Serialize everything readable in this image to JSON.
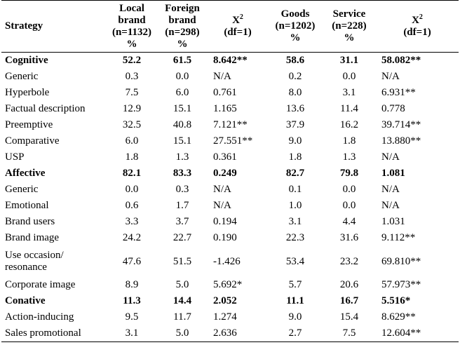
{
  "header": {
    "strategy": "Strategy",
    "local_line1": "Local",
    "local_line2": "brand",
    "local_line3": "(n=1132)",
    "local_line4": "%",
    "foreign_line1": "Foreign",
    "foreign_line2": "brand",
    "foreign_line3": "(n=298)",
    "foreign_line4": "%",
    "chi1_base": "X",
    "chi1_sup": "2",
    "chi1_df": "(df=1)",
    "goods_line1": "Goods",
    "goods_line2": "(n=1202)",
    "goods_line3": "%",
    "service_line1": "Service",
    "service_line2": "(n=228)",
    "service_line3": "%",
    "chi2_base": "X",
    "chi2_sup": "2",
    "chi2_df": "(df=1)"
  },
  "rows": [
    {
      "name": "Cognitive",
      "local": "52.2",
      "foreign": "61.5",
      "chi1": "8.642**",
      "goods": "58.6",
      "service": "31.1",
      "chi2": "58.082**"
    },
    {
      "name": "Generic",
      "local": "0.3",
      "foreign": "0.0",
      "chi1": "N/A",
      "goods": "0.2",
      "service": "0.0",
      "chi2": "N/A"
    },
    {
      "name": "Hyperbole",
      "local": "7.5",
      "foreign": "6.0",
      "chi1": "0.761",
      "goods": "8.0",
      "service": "3.1",
      "chi2": "6.931**"
    },
    {
      "name": "Factual description",
      "local": "12.9",
      "foreign": "15.1",
      "chi1": "1.165",
      "goods": "13.6",
      "service": "11.4",
      "chi2": "0.778"
    },
    {
      "name": "Preemptive",
      "local": "32.5",
      "foreign": "40.8",
      "chi1": "7.121**",
      "goods": "37.9",
      "service": "16.2",
      "chi2": "39.714**"
    },
    {
      "name": "Comparative",
      "local": "6.0",
      "foreign": "15.1",
      "chi1": "27.551**",
      "goods": "9.0",
      "service": "1.8",
      "chi2": "13.880**"
    },
    {
      "name": "USP",
      "local": "1.8",
      "foreign": "1.3",
      "chi1": "0.361",
      "goods": "1.8",
      "service": "1.3",
      "chi2": "N/A"
    },
    {
      "name": "Affective",
      "local": "82.1",
      "foreign": "83.3",
      "chi1": "0.249",
      "goods": "82.7",
      "service": "79.8",
      "chi2": "1.081"
    },
    {
      "name": "Generic",
      "local": "0.0",
      "foreign": "0.3",
      "chi1": "N/A",
      "goods": "0.1",
      "service": "0.0",
      "chi2": "N/A"
    },
    {
      "name": "Emotional",
      "local": "0.6",
      "foreign": "1.7",
      "chi1": "N/A",
      "goods": "1.0",
      "service": "0.0",
      "chi2": "N/A"
    },
    {
      "name": "Brand users",
      "local": "3.3",
      "foreign": "3.7",
      "chi1": "0.194",
      "goods": "3.1",
      "service": "4.4",
      "chi2": "1.031"
    },
    {
      "name": "Brand image",
      "local": "24.2",
      "foreign": "22.7",
      "chi1": "0.190",
      "goods": "22.3",
      "service": "31.6",
      "chi2": "9.112**"
    },
    {
      "name": "Use occasion/ resonance",
      "local": "47.6",
      "foreign": "51.5",
      "chi1": "-1.426",
      "goods": "53.4",
      "service": "23.2",
      "chi2": "69.810**"
    },
    {
      "name": "Corporate image",
      "local": "8.9",
      "foreign": "5.0",
      "chi1": "5.692*",
      "goods": "5.7",
      "service": "20.6",
      "chi2": "57.973**"
    },
    {
      "name": "Conative",
      "local": "11.3",
      "foreign": "14.4",
      "chi1": "2.052",
      "goods": "11.1",
      "service": "16.7",
      "chi2": "5.516*"
    },
    {
      "name": "Action-inducing",
      "local": "9.5",
      "foreign": "11.7",
      "chi1": "1.274",
      "goods": "9.0",
      "service": "15.4",
      "chi2": "8.629**"
    },
    {
      "name": "Sales promotional",
      "local": "3.1",
      "foreign": "5.0",
      "chi1": "2.636",
      "goods": "2.7",
      "service": "7.5",
      "chi2": "12.604**"
    }
  ]
}
